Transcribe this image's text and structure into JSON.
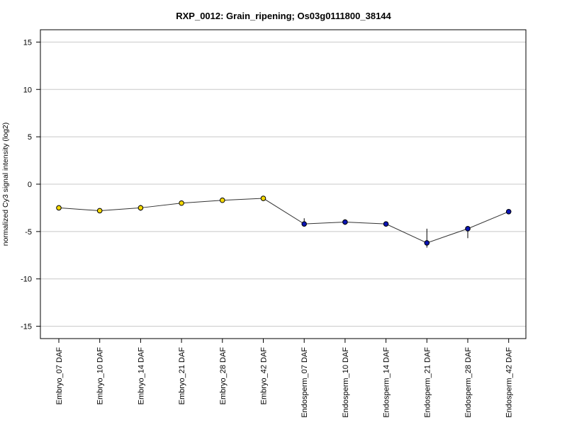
{
  "chart_data": {
    "type": "line",
    "title": "RXP_0012: Grain_ripening; Os03g0111800_38144",
    "xlabel": "",
    "ylabel": "normalized Cy3 signal intensity (log2)",
    "ylim": [
      -16.3,
      16.3
    ],
    "yticks": [
      -15,
      -10,
      -5,
      0,
      5,
      10,
      15
    ],
    "grid": true,
    "categories": [
      "Embryo_07 DAF",
      "Embryo_10 DAF",
      "Embryo_14 DAF",
      "Embryo_21 DAF",
      "Embryo_28 DAF",
      "Embryo_42 DAF",
      "Endosperm_07 DAF",
      "Endosperm_10 DAF",
      "Endosperm_14 DAF",
      "Endosperm_21 DAF",
      "Endosperm_28 DAF",
      "Endosperm_42 DAF"
    ],
    "values": [
      -2.5,
      -2.8,
      -2.5,
      -2.0,
      -1.7,
      -1.5,
      -4.2,
      -4.0,
      -4.2,
      -6.2,
      -4.7,
      -2.9
    ],
    "error_low": [
      -2.7,
      -3.0,
      -2.8,
      -2.1,
      -1.85,
      -1.6,
      -4.3,
      -4.3,
      -4.35,
      -6.7,
      -5.7,
      -3.0
    ],
    "error_high": [
      -2.3,
      -2.6,
      -2.2,
      -1.85,
      -1.55,
      -1.35,
      -3.6,
      -3.7,
      -4.05,
      -4.7,
      -4.5,
      -2.75
    ],
    "point_colors": [
      "#f5d800",
      "#f5d800",
      "#f5d800",
      "#f5d800",
      "#f5d800",
      "#f5d800",
      "#0a14b4",
      "#0a14b4",
      "#0a14b4",
      "#0a14b4",
      "#0a14b4",
      "#0a14b4"
    ],
    "gridline_color": "#c8c8c8",
    "line_color": "#333333"
  }
}
